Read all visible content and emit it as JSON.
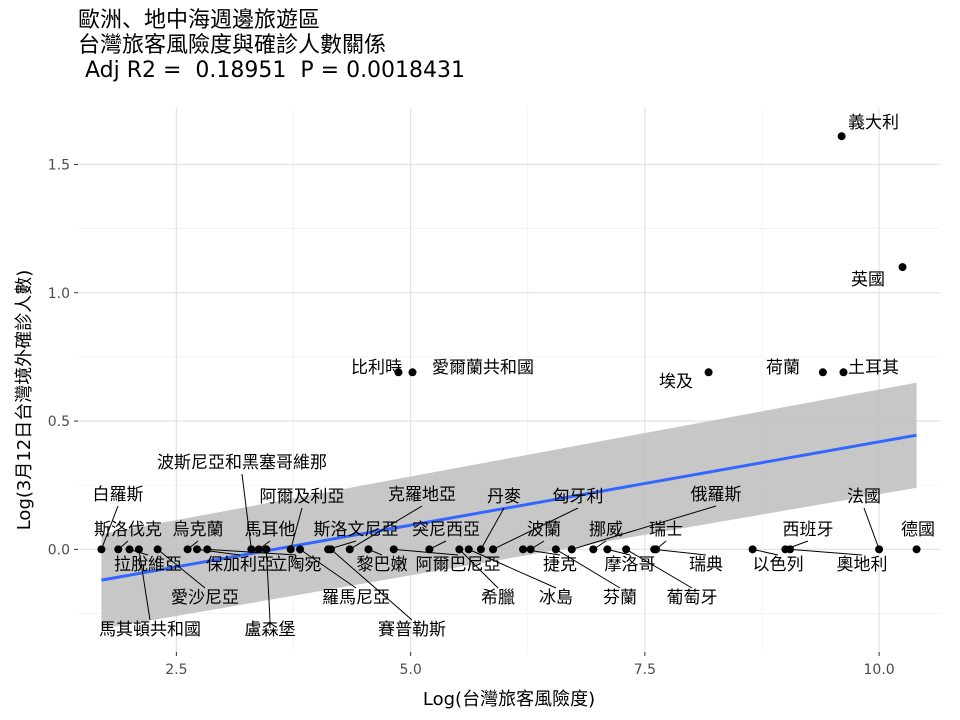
{
  "chart_data": {
    "type": "scatter",
    "title_lines": [
      "歐洲、地中海週邊旅遊區",
      "台灣旅客風險度與確診人數關係",
      " Adj R2 =  0.18951  P = 0.0018431"
    ],
    "xlabel": "Log(台灣旅客風險度)",
    "ylabel": "Log(3月12日台灣境外確診人數)",
    "xlim": [
      1.45,
      10.65
    ],
    "ylim": [
      -0.4,
      1.72
    ],
    "x_ticks": [
      2.5,
      5.0,
      7.5,
      10.0
    ],
    "x_tick_labels": [
      "2.5",
      "5.0",
      "7.5",
      "10.0"
    ],
    "y_ticks": [
      0.0,
      0.5,
      1.0,
      1.5
    ],
    "y_tick_labels": [
      "0.0",
      "0.5",
      "1.0",
      "1.5"
    ],
    "grid": true,
    "regression": {
      "x_range": [
        1.7,
        10.4
      ],
      "y_start": -0.12,
      "y_end": 0.445,
      "ci_start": [
        -0.31,
        0.06
      ],
      "ci_end": [
        0.24,
        0.65
      ],
      "line_color": "#3366ff",
      "band_color": "#bdbdbd"
    },
    "points": [
      {
        "name": "義大利",
        "x": 9.6,
        "y": 1.61
      },
      {
        "name": "英國",
        "x": 10.25,
        "y": 1.1
      },
      {
        "name": "比利時",
        "x": 4.87,
        "y": 0.69
      },
      {
        "name": "愛爾蘭共和國",
        "x": 5.02,
        "y": 0.69
      },
      {
        "name": "埃及",
        "x": 8.18,
        "y": 0.69
      },
      {
        "name": "荷蘭",
        "x": 9.4,
        "y": 0.69
      },
      {
        "name": "土耳其",
        "x": 9.62,
        "y": 0.69
      },
      {
        "name": "白羅斯",
        "x": 1.7,
        "y": 0.0
      },
      {
        "name": "斯洛伐克",
        "x": 1.88,
        "y": 0.0
      },
      {
        "name": "拉脫維亞",
        "x": 2.0,
        "y": 0.0
      },
      {
        "name": "愛沙尼亞",
        "x": 2.3,
        "y": 0.0
      },
      {
        "name": "馬其頓共和國",
        "x": 2.1,
        "y": 0.0
      },
      {
        "name": "烏克蘭",
        "x": 2.62,
        "y": 0.0
      },
      {
        "name": "保加利亞",
        "x": 2.72,
        "y": 0.0
      },
      {
        "name": "立陶宛",
        "x": 2.83,
        "y": 0.0
      },
      {
        "name": "波斯尼亞和黑塞哥維那",
        "x": 3.3,
        "y": 0.0
      },
      {
        "name": "馬耳他",
        "x": 3.38,
        "y": 0.0
      },
      {
        "name": "盧森堡",
        "x": 3.46,
        "y": 0.0
      },
      {
        "name": "阿爾及利亞",
        "x": 3.72,
        "y": 0.0
      },
      {
        "name": "羅馬尼亞",
        "x": 3.82,
        "y": 0.0
      },
      {
        "name": "斯洛文尼亞",
        "x": 4.12,
        "y": 0.0
      },
      {
        "name": "賽普勒斯",
        "x": 4.15,
        "y": 0.0
      },
      {
        "name": "克羅地亞",
        "x": 4.35,
        "y": 0.0
      },
      {
        "name": "黎巴嫩",
        "x": 4.55,
        "y": 0.0
      },
      {
        "name": "阿爾巴尼亞",
        "x": 4.82,
        "y": 0.0
      },
      {
        "name": "突尼西亞",
        "x": 5.2,
        "y": 0.0
      },
      {
        "name": "希臘",
        "x": 5.52,
        "y": 0.0
      },
      {
        "name": "冰島",
        "x": 5.62,
        "y": 0.0
      },
      {
        "name": "丹麥",
        "x": 5.75,
        "y": 0.0
      },
      {
        "name": "匈牙利",
        "x": 5.88,
        "y": 0.0
      },
      {
        "name": "捷克",
        "x": 6.2,
        "y": 0.0
      },
      {
        "name": "波蘭",
        "x": 6.28,
        "y": 0.0
      },
      {
        "name": "芬蘭",
        "x": 6.55,
        "y": 0.0
      },
      {
        "name": "俄羅斯",
        "x": 6.72,
        "y": 0.0
      },
      {
        "name": "挪威",
        "x": 6.95,
        "y": 0.0
      },
      {
        "name": "摩洛哥",
        "x": 7.1,
        "y": 0.0
      },
      {
        "name": "葡萄牙",
        "x": 7.3,
        "y": 0.0
      },
      {
        "name": "瑞士",
        "x": 7.62,
        "y": 0.0
      },
      {
        "name": "瑞典",
        "x": 7.6,
        "y": 0.0
      },
      {
        "name": "以色列",
        "x": 8.65,
        "y": 0.0
      },
      {
        "name": "西班牙",
        "x": 9.0,
        "y": 0.0
      },
      {
        "name": "奧地利",
        "x": 9.05,
        "y": 0.0
      },
      {
        "name": "法國",
        "x": 10.0,
        "y": 0.0
      },
      {
        "name": "德國",
        "x": 10.4,
        "y": 0.0
      }
    ]
  }
}
